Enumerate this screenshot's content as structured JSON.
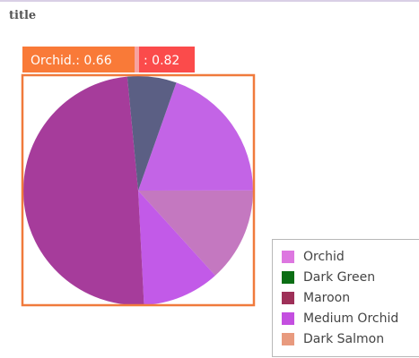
{
  "chart_data": {
    "type": "pie",
    "title": "title",
    "labels": [
      "Orchid",
      "Dark Green",
      "Maroon",
      "Medium Orchid",
      "Dark Salmon"
    ],
    "values": [
      19.6,
      6.9,
      49.3,
      10.9,
      13.3
    ],
    "colors": [
      "#c364e6",
      "#5b5f84",
      "#a63c9b",
      "#c25ae8",
      "#c478c0"
    ],
    "legend": {
      "position": "bottom-right",
      "entries": [
        {
          "label": "Orchid",
          "color": "#dd77e0"
        },
        {
          "label": "Dark Green",
          "color": "#0b6e14"
        },
        {
          "label": "Maroon",
          "color": "#9e3058"
        },
        {
          "label": "Medium Orchid",
          "color": "#c44fe0"
        },
        {
          "label": "Dark Salmon",
          "color": "#e89a7e"
        }
      ]
    },
    "tooltip": {
      "label_a": "Orchid.: 0.66",
      "label_b": ": 0.82",
      "color_a": "#f97a38",
      "color_b": "#fb4b4b"
    },
    "highlight_color": "#f07a3c"
  }
}
